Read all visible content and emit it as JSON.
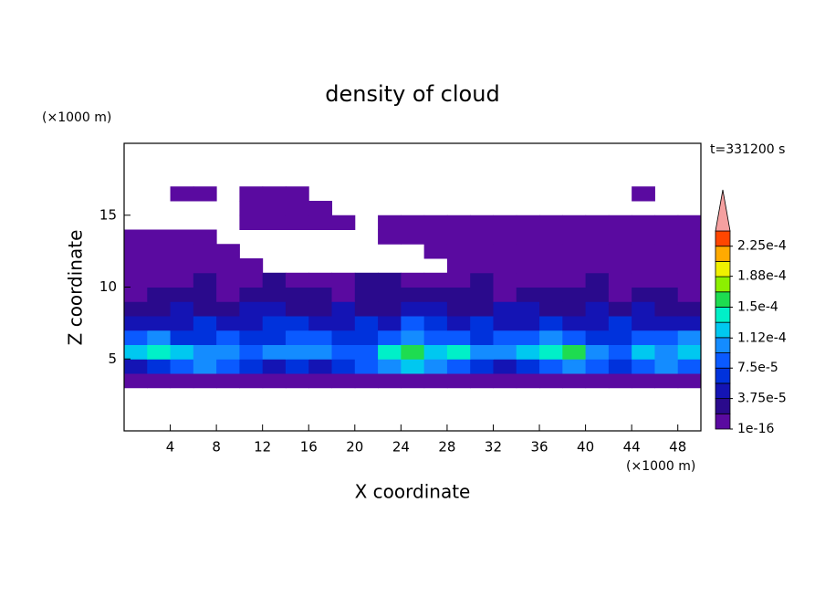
{
  "chart_data": {
    "type": "contour",
    "title": "density of cloud",
    "x_label": "X coordinate",
    "y_label": "Z coordinate",
    "x_unit": "(×1000 m)",
    "y_unit": "(×1000 m)",
    "annotation": "t=331200 s",
    "xlim": [
      0,
      50
    ],
    "xticks": [
      4,
      8,
      12,
      16,
      20,
      24,
      28,
      32,
      36,
      40,
      44,
      48
    ],
    "ylim": [
      0,
      20
    ],
    "yticks": [
      5,
      10,
      15
    ],
    "x": [
      1,
      3,
      5,
      7,
      9,
      11,
      13,
      15,
      17,
      19,
      21,
      23,
      25,
      27,
      29,
      31,
      33,
      35,
      37,
      39,
      41,
      43,
      45,
      47,
      49
    ],
    "y": [
      0.5,
      1.5,
      2.5,
      3.5,
      4.5,
      5.5,
      6.5,
      7.5,
      8.5,
      9.5,
      10.5,
      11.5,
      12.5,
      13.5,
      14.5,
      15.5,
      16.5,
      17.5,
      18.5,
      19.5
    ],
    "levels": [
      1e-16,
      1.875e-05,
      3.75e-05,
      5.625e-05,
      7.5e-05,
      9.375e-05,
      0.0001125,
      0.00013125,
      0.00015,
      0.00016875,
      0.0001875,
      0.00020625,
      0.000225,
      0.00024375
    ],
    "colors": [
      "#5a0aa0",
      "#2a0a8c",
      "#1414b4",
      "#0032dc",
      "#0a5aff",
      "#148cff",
      "#00c8f0",
      "#00f0c8",
      "#1edc50",
      "#8cf000",
      "#f0f000",
      "#ffaa00",
      "#ff4600"
    ],
    "extend": "max",
    "extend_color": "#f5a0a0",
    "colorbar_ticks": [
      {
        "value": 1e-16,
        "label": "1e-16"
      },
      {
        "value": 3.75e-05,
        "label": "3.75e-5"
      },
      {
        "value": 7.5e-05,
        "label": "7.5e-5"
      },
      {
        "value": 0.000112,
        "label": "1.12e-4"
      },
      {
        "value": 0.00015,
        "label": "1.5e-4"
      },
      {
        "value": 0.000188,
        "label": "1.88e-4"
      },
      {
        "value": 0.000225,
        "label": "2.25e-4"
      }
    ],
    "z": [
      [
        null,
        null,
        null,
        null,
        null,
        null,
        null,
        null,
        null,
        null,
        null,
        null,
        null,
        null,
        null,
        null,
        null,
        null,
        null,
        null,
        null,
        null,
        null,
        null,
        null
      ],
      [
        null,
        null,
        null,
        null,
        null,
        null,
        null,
        null,
        null,
        null,
        null,
        null,
        null,
        null,
        null,
        null,
        null,
        null,
        null,
        null,
        null,
        null,
        null,
        null,
        null
      ],
      [
        null,
        null,
        null,
        null,
        null,
        null,
        null,
        null,
        null,
        null,
        null,
        null,
        null,
        null,
        null,
        null,
        null,
        null,
        null,
        null,
        null,
        null,
        null,
        null,
        null
      ],
      [
        5e-06,
        5e-06,
        5e-06,
        5e-06,
        5e-06,
        5e-06,
        5e-06,
        5e-06,
        5e-06,
        5e-06,
        5e-06,
        5e-06,
        5e-06,
        5e-06,
        5e-06,
        5e-06,
        5e-06,
        5e-06,
        5e-06,
        5e-06,
        5e-06,
        5e-06,
        5e-06,
        5e-06,
        5e-06
      ],
      [
        4.5e-05,
        6.5e-05,
        8.5e-05,
        0.0001,
        8.5e-05,
        6.5e-05,
        4.5e-05,
        6.5e-05,
        4.5e-05,
        6.5e-05,
        8.5e-05,
        0.0001,
        0.00012,
        0.0001,
        8.5e-05,
        6.5e-05,
        4.5e-05,
        6.5e-05,
        8.5e-05,
        0.0001,
        8.5e-05,
        6.5e-05,
        8.5e-05,
        0.0001,
        8.5e-05
      ],
      [
        0.00012,
        0.00014,
        0.00012,
        0.0001,
        0.0001,
        8.5e-05,
        0.0001,
        0.0001,
        0.0001,
        8.5e-05,
        8.5e-05,
        0.00014,
        0.00016,
        0.00012,
        0.00014,
        0.0001,
        0.0001,
        0.00012,
        0.00014,
        0.00016,
        0.0001,
        8.5e-05,
        0.00012,
        0.0001,
        0.00012
      ],
      [
        8.5e-05,
        0.0001,
        6.5e-05,
        6.5e-05,
        8.5e-05,
        6.5e-05,
        6.5e-05,
        8.5e-05,
        8.5e-05,
        6.5e-05,
        6.5e-05,
        8.5e-05,
        0.0001,
        8.5e-05,
        8.5e-05,
        6.5e-05,
        8.5e-05,
        8.5e-05,
        0.0001,
        8.5e-05,
        6.5e-05,
        6.5e-05,
        8.5e-05,
        8.5e-05,
        0.0001
      ],
      [
        4.5e-05,
        4.5e-05,
        4.5e-05,
        6.5e-05,
        4.5e-05,
        4.5e-05,
        6.5e-05,
        6.5e-05,
        4.5e-05,
        4.5e-05,
        6.5e-05,
        4.5e-05,
        8.5e-05,
        6.5e-05,
        4.5e-05,
        6.5e-05,
        4.5e-05,
        4.5e-05,
        6.5e-05,
        4.5e-05,
        4.5e-05,
        6.5e-05,
        4.5e-05,
        4.5e-05,
        4.5e-05
      ],
      [
        2.5e-05,
        2.5e-05,
        4.5e-05,
        2.5e-05,
        2.5e-05,
        4.5e-05,
        4.5e-05,
        2.5e-05,
        2.5e-05,
        4.5e-05,
        2.5e-05,
        2.5e-05,
        4.5e-05,
        4.5e-05,
        2.5e-05,
        2.5e-05,
        4.5e-05,
        4.5e-05,
        2.5e-05,
        2.5e-05,
        4.5e-05,
        2.5e-05,
        4.5e-05,
        2.5e-05,
        2.5e-05
      ],
      [
        5e-06,
        2.5e-05,
        2.5e-05,
        2.5e-05,
        5e-06,
        2.5e-05,
        2.5e-05,
        2.5e-05,
        2.5e-05,
        5e-06,
        2.5e-05,
        2.5e-05,
        2.5e-05,
        2.5e-05,
        2.5e-05,
        2.5e-05,
        5e-06,
        2.5e-05,
        2.5e-05,
        2.5e-05,
        2.5e-05,
        5e-06,
        2.5e-05,
        2.5e-05,
        5e-06
      ],
      [
        5e-06,
        5e-06,
        5e-06,
        2.5e-05,
        5e-06,
        5e-06,
        2.5e-05,
        5e-06,
        5e-06,
        5e-06,
        2.5e-05,
        2.5e-05,
        5e-06,
        5e-06,
        5e-06,
        2.5e-05,
        5e-06,
        5e-06,
        5e-06,
        5e-06,
        2.5e-05,
        5e-06,
        5e-06,
        5e-06,
        5e-06
      ],
      [
        5e-06,
        5e-06,
        5e-06,
        5e-06,
        5e-06,
        5e-06,
        null,
        null,
        null,
        null,
        null,
        null,
        null,
        null,
        5e-06,
        5e-06,
        5e-06,
        5e-06,
        5e-06,
        5e-06,
        5e-06,
        5e-06,
        5e-06,
        5e-06,
        5e-06
      ],
      [
        5e-06,
        5e-06,
        5e-06,
        5e-06,
        5e-06,
        null,
        null,
        null,
        null,
        null,
        null,
        null,
        null,
        5e-06,
        5e-06,
        5e-06,
        5e-06,
        5e-06,
        5e-06,
        5e-06,
        5e-06,
        5e-06,
        5e-06,
        5e-06,
        5e-06
      ],
      [
        5e-06,
        5e-06,
        5e-06,
        5e-06,
        null,
        null,
        null,
        null,
        null,
        null,
        null,
        5e-06,
        5e-06,
        5e-06,
        5e-06,
        5e-06,
        5e-06,
        5e-06,
        5e-06,
        5e-06,
        5e-06,
        5e-06,
        5e-06,
        5e-06,
        5e-06
      ],
      [
        null,
        null,
        null,
        null,
        null,
        5e-06,
        5e-06,
        5e-06,
        5e-06,
        5e-06,
        null,
        5e-06,
        5e-06,
        5e-06,
        5e-06,
        5e-06,
        5e-06,
        5e-06,
        5e-06,
        5e-06,
        5e-06,
        5e-06,
        5e-06,
        5e-06,
        5e-06
      ],
      [
        null,
        null,
        null,
        null,
        null,
        5e-06,
        5e-06,
        5e-06,
        5e-06,
        null,
        null,
        null,
        null,
        null,
        null,
        null,
        null,
        null,
        null,
        null,
        null,
        null,
        null,
        null,
        null
      ],
      [
        null,
        null,
        5e-06,
        5e-06,
        null,
        5e-06,
        5e-06,
        5e-06,
        null,
        null,
        null,
        null,
        null,
        null,
        null,
        null,
        null,
        null,
        null,
        null,
        null,
        null,
        5e-06,
        null,
        null
      ],
      [
        null,
        null,
        null,
        null,
        null,
        null,
        null,
        null,
        null,
        null,
        null,
        null,
        null,
        null,
        null,
        null,
        null,
        null,
        null,
        null,
        null,
        null,
        null,
        null,
        null
      ],
      [
        null,
        null,
        null,
        null,
        null,
        null,
        null,
        null,
        null,
        null,
        null,
        null,
        null,
        null,
        null,
        null,
        null,
        null,
        null,
        null,
        null,
        null,
        null,
        null,
        null
      ],
      [
        null,
        null,
        null,
        null,
        null,
        null,
        null,
        null,
        null,
        null,
        null,
        null,
        null,
        null,
        null,
        null,
        null,
        null,
        null,
        null,
        null,
        null,
        null,
        null,
        null
      ]
    ]
  }
}
